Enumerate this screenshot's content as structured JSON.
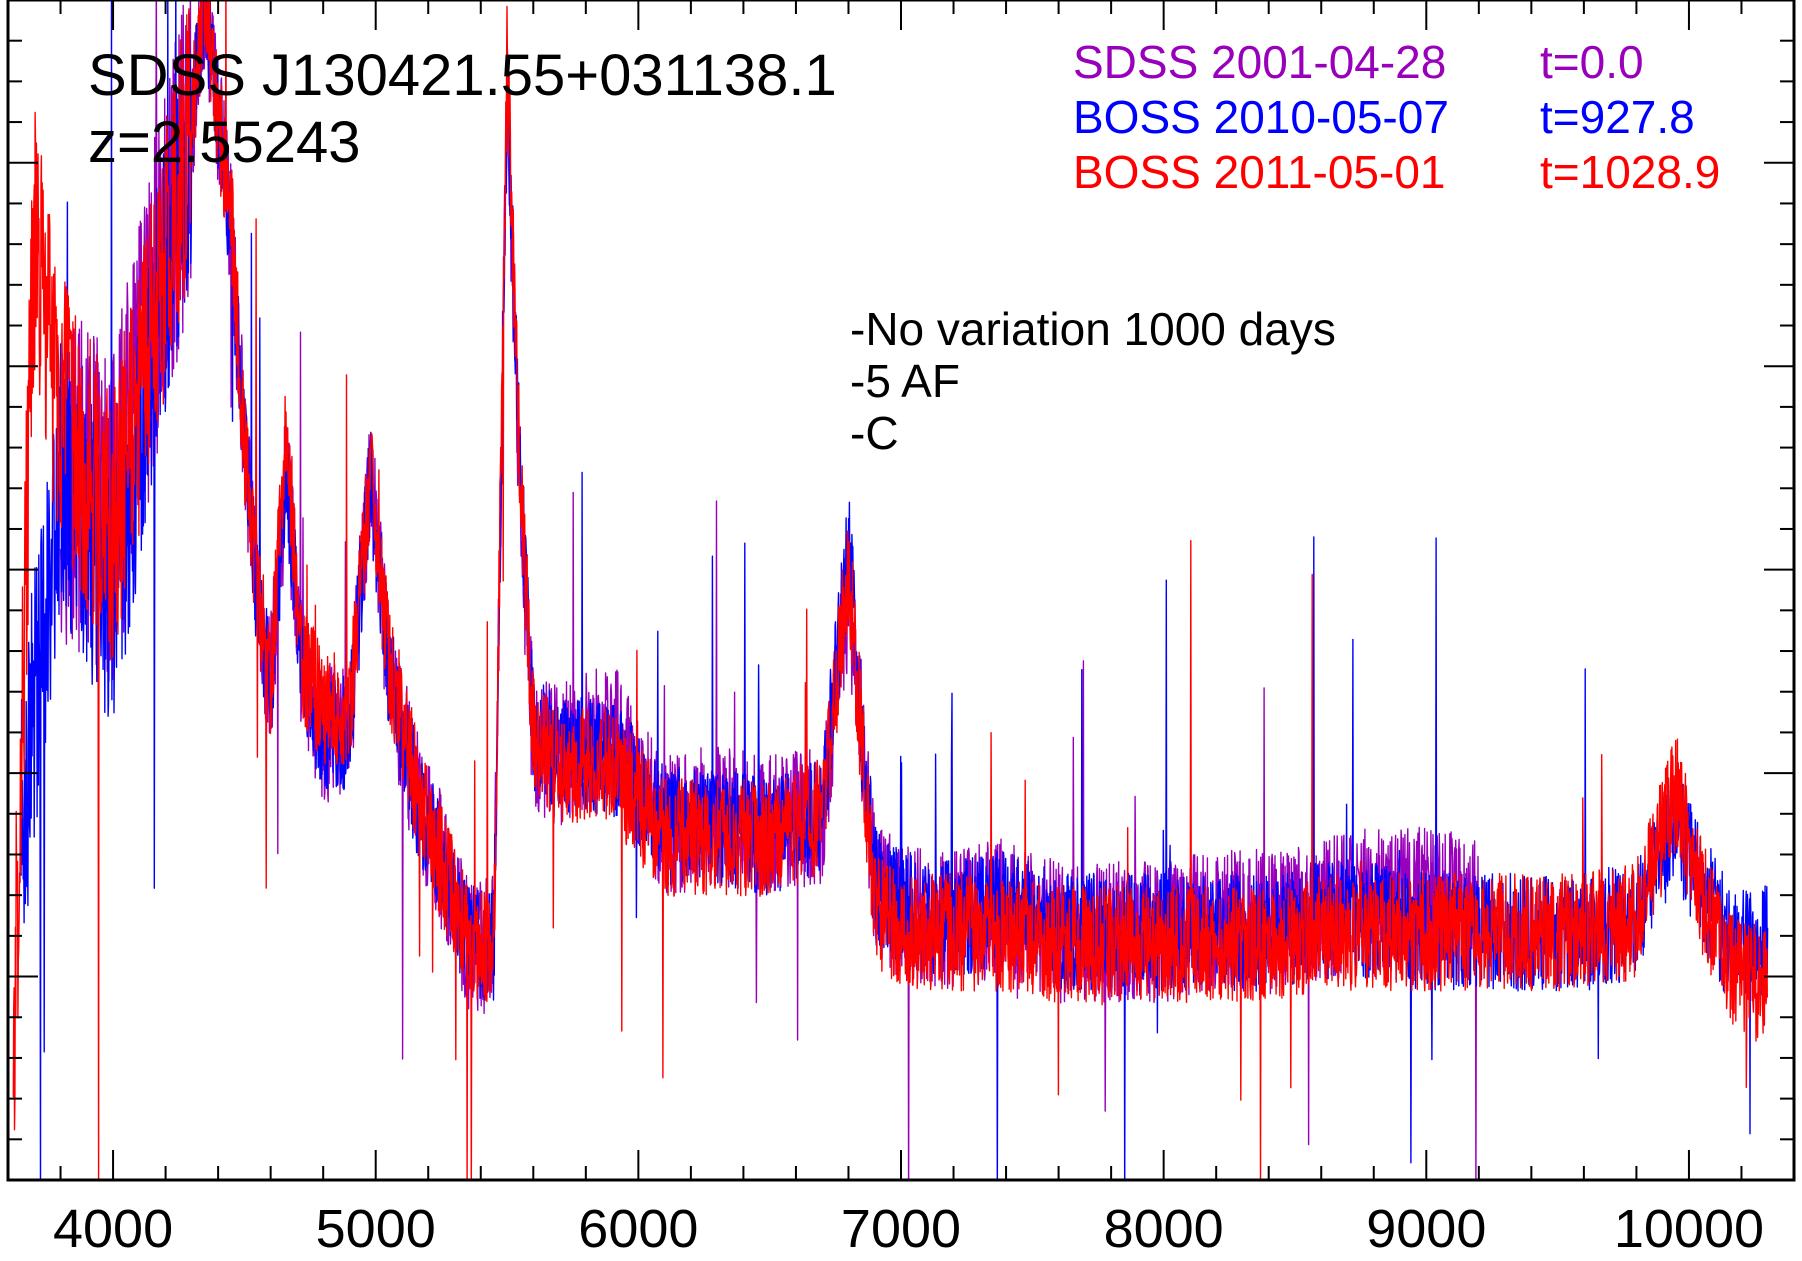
{
  "chart_data": {
    "type": "line",
    "title": "SDSS J130421.55+031138.1",
    "subtitle": "z=2.55243",
    "xlabel": "",
    "ylabel": "",
    "xlim": [
      3600,
      10400
    ],
    "ylim": [
      0,
      1
    ],
    "x_ticks": [
      {
        "value": 4000,
        "label": "4000"
      },
      {
        "value": 5000,
        "label": "5000"
      },
      {
        "value": 6000,
        "label": "6000"
      },
      {
        "value": 7000,
        "label": "7000"
      },
      {
        "value": 8000,
        "label": "8000"
      },
      {
        "value": 9000,
        "label": "9000"
      },
      {
        "value": 10000,
        "label": "10000"
      }
    ],
    "grid": false,
    "legend_position": "top-right",
    "annotations": [
      "-No variation 1000 days",
      "-5 AF",
      "-C"
    ],
    "series": [
      {
        "name": "SDSS 2001-04-28  t=0.0",
        "label_date": "SDSS 2001-04-28",
        "label_time": "t=0.0",
        "color": "#9900bb",
        "noise": 0.06,
        "x": [
          3800,
          4000,
          4300,
          4350,
          4400,
          4450,
          4500,
          4550,
          4600,
          4660,
          4720,
          4800,
          4900,
          4980,
          5050,
          5150,
          5250,
          5350,
          5450,
          5500,
          5550,
          5600,
          5700,
          5900,
          6100,
          6300,
          6500,
          6700,
          6800,
          6850,
          6900,
          7000,
          7200,
          7400,
          7600,
          7800,
          8000,
          8200,
          8400,
          8600,
          8800,
          9000,
          9200
        ],
        "y": [
          0.6,
          0.56,
          0.9,
          1.0,
          0.9,
          0.8,
          0.62,
          0.49,
          0.42,
          0.6,
          0.43,
          0.38,
          0.38,
          0.6,
          0.43,
          0.33,
          0.27,
          0.2,
          0.2,
          0.92,
          0.58,
          0.37,
          0.36,
          0.38,
          0.3,
          0.31,
          0.3,
          0.31,
          0.5,
          0.38,
          0.25,
          0.23,
          0.22,
          0.23,
          0.21,
          0.21,
          0.21,
          0.22,
          0.22,
          0.23,
          0.24,
          0.24,
          0.23
        ]
      },
      {
        "name": "BOSS 2010-05-07  t=927.8",
        "label_date": "BOSS 2010-05-07",
        "label_time": "t=927.8",
        "color": "#0000ff",
        "noise": 0.05,
        "x": [
          3650,
          3800,
          4000,
          4300,
          4350,
          4400,
          4450,
          4500,
          4550,
          4600,
          4660,
          4720,
          4800,
          4900,
          4980,
          5050,
          5150,
          5250,
          5350,
          5450,
          5500,
          5550,
          5600,
          5700,
          5900,
          6100,
          6300,
          6500,
          6700,
          6800,
          6850,
          6900,
          7000,
          7200,
          7400,
          7600,
          7800,
          8000,
          8200,
          8400,
          8600,
          8800,
          9000,
          9200,
          9400,
          9600,
          9800,
          9950,
          10050,
          10150,
          10300
        ],
        "y": [
          0.3,
          0.6,
          0.5,
          0.9,
          1.0,
          0.9,
          0.8,
          0.62,
          0.49,
          0.42,
          0.6,
          0.43,
          0.38,
          0.38,
          0.6,
          0.43,
          0.33,
          0.27,
          0.2,
          0.2,
          0.92,
          0.6,
          0.38,
          0.36,
          0.36,
          0.3,
          0.3,
          0.29,
          0.31,
          0.54,
          0.38,
          0.25,
          0.23,
          0.22,
          0.23,
          0.21,
          0.21,
          0.21,
          0.21,
          0.21,
          0.22,
          0.22,
          0.21,
          0.21,
          0.21,
          0.21,
          0.22,
          0.3,
          0.25,
          0.2,
          0.2
        ]
      },
      {
        "name": "BOSS 2011-05-01  t=1028.9",
        "label_date": "BOSS 2011-05-01",
        "label_time": "t=1028.9",
        "color": "#ff0000",
        "noise": 0.05,
        "x": [
          3620,
          3700,
          3800,
          4000,
          4300,
          4350,
          4400,
          4450,
          4500,
          4550,
          4600,
          4660,
          4720,
          4800,
          4900,
          4980,
          5050,
          5150,
          5250,
          5350,
          5450,
          5500,
          5550,
          5600,
          5700,
          5900,
          6100,
          6300,
          6500,
          6700,
          6800,
          6850,
          6900,
          7000,
          7200,
          7400,
          7600,
          7800,
          8000,
          8200,
          8400,
          8600,
          8800,
          9000,
          9200,
          9400,
          9600,
          9800,
          9950,
          10050,
          10150,
          10300
        ],
        "y": [
          0.1,
          0.8,
          0.65,
          0.55,
          0.9,
          1.0,
          0.9,
          0.82,
          0.62,
          0.5,
          0.42,
          0.64,
          0.44,
          0.4,
          0.4,
          0.6,
          0.44,
          0.34,
          0.27,
          0.2,
          0.2,
          0.95,
          0.6,
          0.38,
          0.35,
          0.35,
          0.29,
          0.29,
          0.29,
          0.31,
          0.52,
          0.37,
          0.23,
          0.21,
          0.21,
          0.21,
          0.2,
          0.2,
          0.2,
          0.2,
          0.2,
          0.21,
          0.21,
          0.21,
          0.21,
          0.21,
          0.21,
          0.22,
          0.33,
          0.24,
          0.18,
          0.16
        ]
      }
    ]
  }
}
